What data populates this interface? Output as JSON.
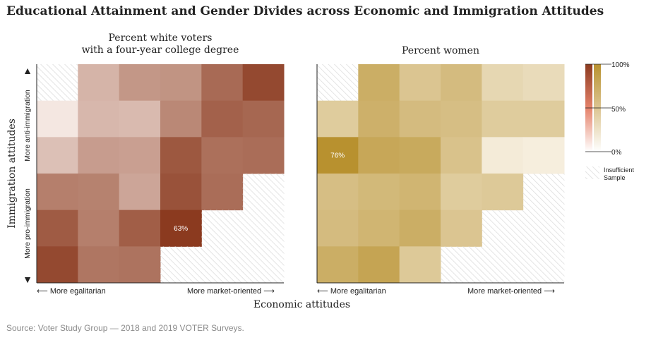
{
  "title": "Educational Attainment and Gender Divides across Economic and Immigration Attitudes",
  "source": "Source: Voter Study Group — 2018 and 2019 VOTER Surveys.",
  "y_axis_title": "Immigration attitudes",
  "x_axis_title": "Economic attitudes",
  "y_labels": {
    "top": "More anti-immigration",
    "bottom": "More pro-immigration"
  },
  "x_labels": {
    "left": "More egalitarian",
    "right": "More market-oriented"
  },
  "arrows": {
    "up": "▲",
    "down": "▼",
    "left": "⟵",
    "right": "⟶"
  },
  "colors": {
    "education_high": "#8b3a1f",
    "education_low": "#fdf6f2",
    "women_high": "#b8912f",
    "women_low": "#fdf9f2",
    "hatch": "#dddddd"
  },
  "legend": {
    "ticks": [
      "100%",
      "50%",
      "0%"
    ],
    "insufficient_line1": "Insufficient",
    "insufficient_line2": "Sample"
  },
  "chart_data": [
    {
      "type": "heatmap",
      "title": "Percent white voters with a four-year college degree",
      "title_lines": [
        "Percent white voters",
        "with a four-year college degree"
      ],
      "x_categories": [
        "1",
        "2",
        "3",
        "4",
        "5",
        "6"
      ],
      "y_categories": [
        "1",
        "2",
        "3",
        "4",
        "5",
        "6"
      ],
      "value_range": [
        0,
        100
      ],
      "annotations": [
        {
          "row": 4,
          "col": 3,
          "text": "63%"
        }
      ],
      "values": [
        [
          null,
          22,
          32,
          33,
          47,
          58
        ],
        [
          5,
          21,
          20,
          37,
          50,
          48
        ],
        [
          18,
          30,
          29,
          53,
          45,
          46
        ],
        [
          40,
          39,
          27,
          55,
          46,
          null
        ],
        [
          52,
          40,
          51,
          63,
          null,
          null
        ],
        [
          58,
          43,
          44,
          null,
          null,
          null
        ]
      ]
    },
    {
      "type": "heatmap",
      "title": "Percent women",
      "title_lines": [
        "Percent women"
      ],
      "x_categories": [
        "1",
        "2",
        "3",
        "4",
        "5",
        "6"
      ],
      "y_categories": [
        "1",
        "2",
        "3",
        "4",
        "5",
        "6"
      ],
      "value_range": [
        0,
        100
      ],
      "annotations": [
        {
          "row": 2,
          "col": 0,
          "text": "76%"
        }
      ],
      "values": [
        [
          null,
          55,
          38,
          45,
          25,
          22
        ],
        [
          33,
          53,
          45,
          43,
          33,
          33
        ],
        [
          76,
          60,
          58,
          40,
          10,
          8
        ],
        [
          43,
          47,
          50,
          33,
          35,
          null
        ],
        [
          45,
          50,
          55,
          38,
          null,
          null
        ],
        [
          55,
          62,
          35,
          null,
          null,
          null
        ]
      ]
    }
  ]
}
